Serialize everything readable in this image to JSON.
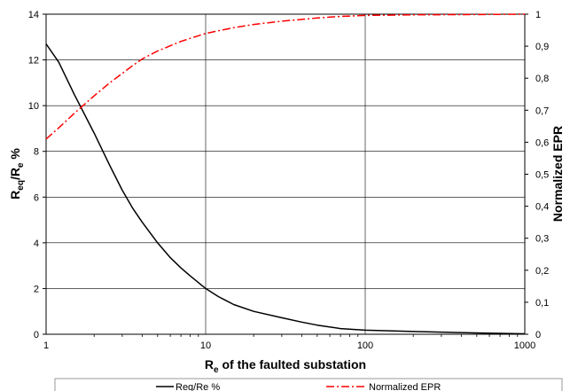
{
  "chart_data": {
    "type": "line",
    "x_scale": "log",
    "xlim": [
      1,
      1000
    ],
    "x_ticks": [
      "1",
      "10",
      "100",
      "1000"
    ],
    "y_left": {
      "lim": [
        0,
        14
      ],
      "ticks": [
        "0",
        "2",
        "4",
        "6",
        "8",
        "10",
        "12",
        "14"
      ]
    },
    "y_right": {
      "lim": [
        0,
        1
      ],
      "ticks": [
        "0",
        "0,1",
        "0,2",
        "0,3",
        "0,4",
        "0,5",
        "0,6",
        "0,7",
        "0,8",
        "0,9",
        "1"
      ]
    },
    "xlabel": {
      "main": "R",
      "sub": "e",
      "rest": " of the faulted substation"
    },
    "ylabel_left": {
      "main": "R",
      "sub1": "eq",
      "mid": "/R",
      "sub2": "e",
      "rest": " %"
    },
    "ylabel_right": "Normalized EPR",
    "grid": true,
    "legend_position": "bottom",
    "series": [
      {
        "name": "Req/Re %",
        "axis": "left",
        "color": "#000000",
        "dash": "solid",
        "x": [
          1,
          1.2,
          1.5,
          2,
          2.5,
          3,
          3.5,
          4,
          5,
          6,
          7,
          8,
          10,
          12,
          15,
          20,
          30,
          40,
          50,
          70,
          100,
          200,
          500,
          1000
        ],
        "y": [
          12.7,
          11.9,
          10.5,
          8.8,
          7.4,
          6.3,
          5.5,
          4.9,
          4.0,
          3.35,
          2.9,
          2.55,
          2.0,
          1.65,
          1.3,
          1.0,
          0.72,
          0.53,
          0.4,
          0.25,
          0.18,
          0.12,
          0.06,
          0.02
        ]
      },
      {
        "name": "Normalized EPR",
        "axis": "right",
        "color": "#ff0000",
        "dash": "dashdot",
        "x": [
          1,
          1.2,
          1.5,
          2,
          2.5,
          3,
          3.5,
          4,
          5,
          7,
          10,
          15,
          20,
          30,
          50,
          70,
          100,
          200,
          500,
          1000
        ],
        "y": [
          0.61,
          0.645,
          0.69,
          0.745,
          0.785,
          0.815,
          0.84,
          0.86,
          0.885,
          0.915,
          0.94,
          0.958,
          0.968,
          0.978,
          0.988,
          0.993,
          0.996,
          0.998,
          0.999,
          1.0
        ]
      }
    ]
  }
}
